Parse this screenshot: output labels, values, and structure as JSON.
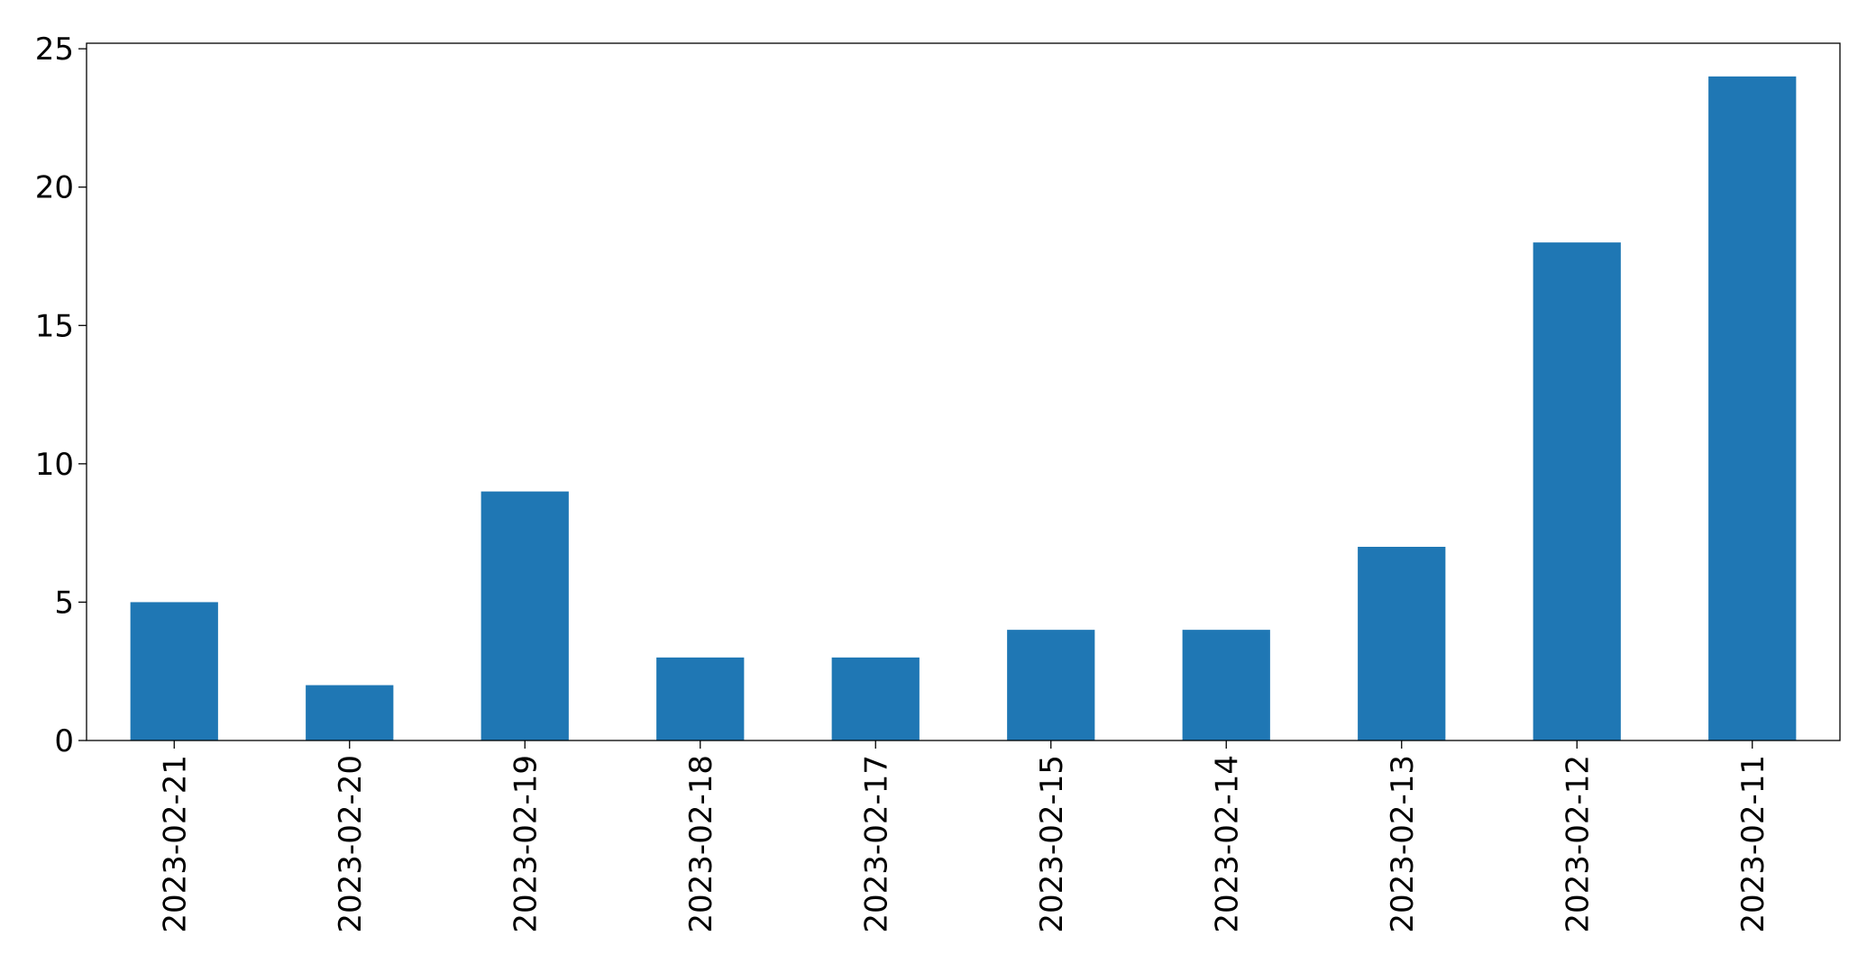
{
  "chart_data": {
    "type": "bar",
    "categories": [
      "2023-02-21",
      "2023-02-20",
      "2023-02-19",
      "2023-02-18",
      "2023-02-17",
      "2023-02-15",
      "2023-02-14",
      "2023-02-13",
      "2023-02-12",
      "2023-02-11"
    ],
    "values": [
      5,
      2,
      9,
      3,
      3,
      4,
      4,
      7,
      18,
      24
    ],
    "color": "#1f77b4",
    "ylim": [
      0,
      25.2
    ],
    "yticks": [
      0,
      5,
      10,
      15,
      20,
      25
    ],
    "grid": false
  }
}
